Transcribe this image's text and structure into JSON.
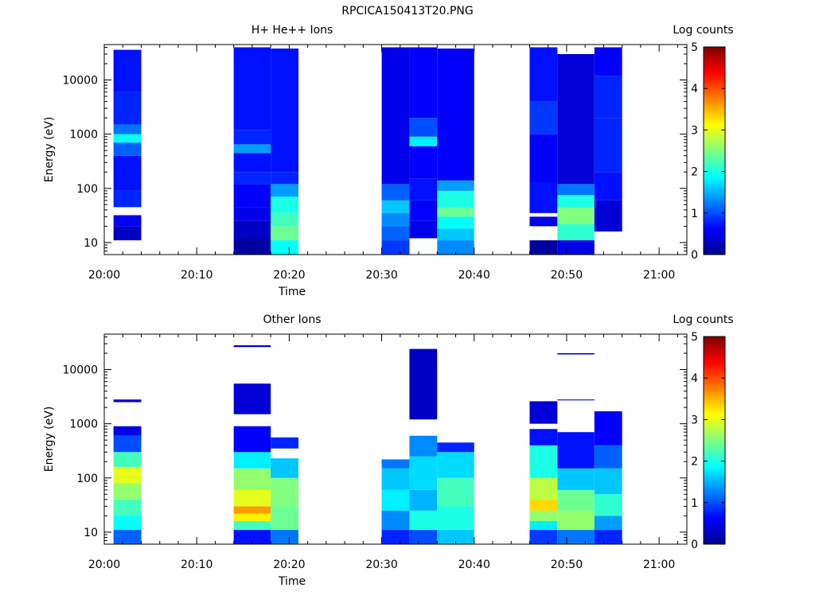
{
  "page_title": "RPCICA150413T20.PNG",
  "colors": {
    "colormap": [
      "#00008f",
      "#0000ff",
      "#0080ff",
      "#00ffff",
      "#80ff80",
      "#ffff00",
      "#ff8000",
      "#ff0000",
      "#800000"
    ]
  },
  "chart_data": [
    {
      "type": "heatmap",
      "title": "H+ He++ Ions",
      "xlabel": "Time",
      "ylabel": "Energy (eV)",
      "colorbar_label": "Log counts",
      "colorbar_range": [
        0,
        5
      ],
      "colorbar_ticks": [
        "0",
        "1",
        "2",
        "3",
        "4",
        "5"
      ],
      "y_scale": "log",
      "ylim": [
        6,
        45000
      ],
      "y_ticks": [
        {
          "value": 10,
          "label": "10"
        },
        {
          "value": 100,
          "label": "100"
        },
        {
          "value": 1000,
          "label": "1000"
        },
        {
          "value": 10000,
          "label": "10000"
        }
      ],
      "xlim": [
        "20:00",
        "21:03"
      ],
      "x_ticks": [
        "20:00",
        "20:10",
        "20:20",
        "20:30",
        "20:40",
        "20:50",
        "21:00"
      ],
      "columns": [
        {
          "t_start": "20:01",
          "t_end": "20:04",
          "bands": [
            {
              "emin": 11,
              "emax": 20,
              "log_counts": 0.3
            },
            {
              "emin": 20,
              "emax": 32,
              "log_counts": 0.6
            },
            {
              "emin": 45,
              "emax": 90,
              "log_counts": 0.8
            },
            {
              "emin": 90,
              "emax": 400,
              "log_counts": 0.7
            },
            {
              "emin": 400,
              "emax": 700,
              "log_counts": 1.1
            },
            {
              "emin": 700,
              "emax": 1000,
              "log_counts": 1.9
            },
            {
              "emin": 1000,
              "emax": 1500,
              "log_counts": 1.2
            },
            {
              "emin": 1500,
              "emax": 6000,
              "log_counts": 0.8
            },
            {
              "emin": 6000,
              "emax": 36000,
              "log_counts": 0.7
            }
          ]
        },
        {
          "t_start": "20:14",
          "t_end": "20:18",
          "bands": [
            {
              "emin": 6,
              "emax": 12,
              "log_counts": 0.1
            },
            {
              "emin": 12,
              "emax": 25,
              "log_counts": 0.3
            },
            {
              "emin": 25,
              "emax": 45,
              "log_counts": 0.5
            },
            {
              "emin": 45,
              "emax": 120,
              "log_counts": 0.6
            },
            {
              "emin": 120,
              "emax": 200,
              "log_counts": 0.8
            },
            {
              "emin": 200,
              "emax": 450,
              "log_counts": 0.7
            },
            {
              "emin": 450,
              "emax": 650,
              "log_counts": 1.4
            },
            {
              "emin": 650,
              "emax": 1200,
              "log_counts": 0.8
            },
            {
              "emin": 1200,
              "emax": 40000,
              "log_counts": 0.7
            }
          ]
        },
        {
          "t_start": "20:18",
          "t_end": "20:21",
          "bands": [
            {
              "emin": 6,
              "emax": 11,
              "log_counts": 1.9
            },
            {
              "emin": 11,
              "emax": 20,
              "log_counts": 2.4
            },
            {
              "emin": 20,
              "emax": 35,
              "log_counts": 2.2
            },
            {
              "emin": 35,
              "emax": 70,
              "log_counts": 2.0
            },
            {
              "emin": 70,
              "emax": 120,
              "log_counts": 1.4
            },
            {
              "emin": 120,
              "emax": 200,
              "log_counts": 0.8
            },
            {
              "emin": 200,
              "emax": 38000,
              "log_counts": 0.7
            }
          ]
        },
        {
          "t_start": "20:30",
          "t_end": "20:33",
          "bands": [
            {
              "emin": 6,
              "emax": 11,
              "log_counts": 0.9
            },
            {
              "emin": 11,
              "emax": 20,
              "log_counts": 1.1
            },
            {
              "emin": 20,
              "emax": 35,
              "log_counts": 1.3
            },
            {
              "emin": 35,
              "emax": 60,
              "log_counts": 1.6
            },
            {
              "emin": 60,
              "emax": 120,
              "log_counts": 1.1
            },
            {
              "emin": 120,
              "emax": 40000,
              "log_counts": 0.5
            }
          ]
        },
        {
          "t_start": "20:33",
          "t_end": "20:36",
          "bands": [
            {
              "emin": 12,
              "emax": 25,
              "log_counts": 0.5
            },
            {
              "emin": 25,
              "emax": 60,
              "log_counts": 0.6
            },
            {
              "emin": 60,
              "emax": 150,
              "log_counts": 0.7
            },
            {
              "emin": 150,
              "emax": 600,
              "log_counts": 0.6
            },
            {
              "emin": 600,
              "emax": 900,
              "log_counts": 1.8
            },
            {
              "emin": 900,
              "emax": 2000,
              "log_counts": 1.0
            },
            {
              "emin": 2000,
              "emax": 40000,
              "log_counts": 0.6
            }
          ]
        },
        {
          "t_start": "20:36",
          "t_end": "20:40",
          "bands": [
            {
              "emin": 6,
              "emax": 11,
              "log_counts": 1.3
            },
            {
              "emin": 11,
              "emax": 18,
              "log_counts": 1.6
            },
            {
              "emin": 18,
              "emax": 30,
              "log_counts": 1.9
            },
            {
              "emin": 30,
              "emax": 45,
              "log_counts": 2.4
            },
            {
              "emin": 45,
              "emax": 90,
              "log_counts": 2.0
            },
            {
              "emin": 90,
              "emax": 140,
              "log_counts": 1.4
            },
            {
              "emin": 140,
              "emax": 38000,
              "log_counts": 0.6
            }
          ]
        },
        {
          "t_start": "20:46",
          "t_end": "20:49",
          "bands": [
            {
              "emin": 6,
              "emax": 11,
              "log_counts": 0.1
            },
            {
              "emin": 20,
              "emax": 30,
              "log_counts": 0.5
            },
            {
              "emin": 35,
              "emax": 130,
              "log_counts": 0.7
            },
            {
              "emin": 130,
              "emax": 1000,
              "log_counts": 0.6
            },
            {
              "emin": 1000,
              "emax": 4000,
              "log_counts": 0.9
            },
            {
              "emin": 4000,
              "emax": 40000,
              "log_counts": 0.7
            }
          ]
        },
        {
          "t_start": "20:49",
          "t_end": "20:53",
          "bands": [
            {
              "emin": 6,
              "emax": 11,
              "log_counts": 0.5
            },
            {
              "emin": 11,
              "emax": 22,
              "log_counts": 2.1
            },
            {
              "emin": 22,
              "emax": 45,
              "log_counts": 2.5
            },
            {
              "emin": 45,
              "emax": 75,
              "log_counts": 2.0
            },
            {
              "emin": 75,
              "emax": 120,
              "log_counts": 1.2
            },
            {
              "emin": 120,
              "emax": 30000,
              "log_counts": 0.4
            }
          ]
        },
        {
          "t_start": "20:53",
          "t_end": "20:56",
          "bands": [
            {
              "emin": 16,
              "emax": 60,
              "log_counts": 0.4
            },
            {
              "emin": 60,
              "emax": 200,
              "log_counts": 0.7
            },
            {
              "emin": 200,
              "emax": 2000,
              "log_counts": 0.8
            },
            {
              "emin": 2000,
              "emax": 12000,
              "log_counts": 0.8
            },
            {
              "emin": 12000,
              "emax": 40000,
              "log_counts": 0.6
            }
          ]
        }
      ]
    },
    {
      "type": "heatmap",
      "title": "Other Ions",
      "xlabel": "Time",
      "ylabel": "Energy (eV)",
      "colorbar_label": "Log counts",
      "colorbar_range": [
        0,
        5
      ],
      "colorbar_ticks": [
        "0",
        "1",
        "2",
        "3",
        "4",
        "5"
      ],
      "y_scale": "log",
      "ylim": [
        6,
        45000
      ],
      "y_ticks": [
        {
          "value": 10,
          "label": "10"
        },
        {
          "value": 100,
          "label": "100"
        },
        {
          "value": 1000,
          "label": "1000"
        },
        {
          "value": 10000,
          "label": "10000"
        }
      ],
      "xlim": [
        "20:00",
        "21:03"
      ],
      "x_ticks": [
        "20:00",
        "20:10",
        "20:20",
        "20:30",
        "20:40",
        "20:50",
        "21:00"
      ],
      "columns": [
        {
          "t_start": "20:01",
          "t_end": "20:04",
          "bands": [
            {
              "emin": 6,
              "emax": 11,
              "log_counts": 1.1
            },
            {
              "emin": 11,
              "emax": 20,
              "log_counts": 1.9
            },
            {
              "emin": 20,
              "emax": 40,
              "log_counts": 2.2
            },
            {
              "emin": 40,
              "emax": 80,
              "log_counts": 2.6
            },
            {
              "emin": 80,
              "emax": 160,
              "log_counts": 3.0
            },
            {
              "emin": 160,
              "emax": 300,
              "log_counts": 2.2
            },
            {
              "emin": 300,
              "emax": 600,
              "log_counts": 1.0
            },
            {
              "emin": 600,
              "emax": 900,
              "log_counts": 0.5
            },
            {
              "emin": 2500,
              "emax": 2800,
              "log_counts": 0.4
            }
          ]
        },
        {
          "t_start": "20:14",
          "t_end": "20:18",
          "bands": [
            {
              "emin": 6,
              "emax": 11,
              "log_counts": 0.7
            },
            {
              "emin": 11,
              "emax": 16,
              "log_counts": 2.2
            },
            {
              "emin": 16,
              "emax": 22,
              "log_counts": 3.2
            },
            {
              "emin": 22,
              "emax": 30,
              "log_counts": 3.6
            },
            {
              "emin": 30,
              "emax": 60,
              "log_counts": 3.0
            },
            {
              "emin": 60,
              "emax": 150,
              "log_counts": 2.6
            },
            {
              "emin": 150,
              "emax": 300,
              "log_counts": 1.8
            },
            {
              "emin": 300,
              "emax": 900,
              "log_counts": 0.6
            },
            {
              "emin": 1500,
              "emax": 5500,
              "log_counts": 0.4
            },
            {
              "emin": 26000,
              "emax": 28000,
              "log_counts": 0.3
            }
          ]
        },
        {
          "t_start": "20:18",
          "t_end": "20:21",
          "bands": [
            {
              "emin": 6,
              "emax": 11,
              "log_counts": 1.2
            },
            {
              "emin": 11,
              "emax": 30,
              "log_counts": 2.4
            },
            {
              "emin": 30,
              "emax": 100,
              "log_counts": 2.5
            },
            {
              "emin": 100,
              "emax": 230,
              "log_counts": 1.6
            },
            {
              "emin": 350,
              "emax": 560,
              "log_counts": 0.8
            }
          ]
        },
        {
          "t_start": "20:30",
          "t_end": "20:33",
          "bands": [
            {
              "emin": 6,
              "emax": 11,
              "log_counts": 0.8
            },
            {
              "emin": 11,
              "emax": 25,
              "log_counts": 1.3
            },
            {
              "emin": 25,
              "emax": 60,
              "log_counts": 1.8
            },
            {
              "emin": 60,
              "emax": 150,
              "log_counts": 1.6
            },
            {
              "emin": 150,
              "emax": 220,
              "log_counts": 1.2
            }
          ]
        },
        {
          "t_start": "20:33",
          "t_end": "20:36",
          "bands": [
            {
              "emin": 6,
              "emax": 11,
              "log_counts": 1.0
            },
            {
              "emin": 11,
              "emax": 25,
              "log_counts": 2.0
            },
            {
              "emin": 25,
              "emax": 60,
              "log_counts": 1.5
            },
            {
              "emin": 60,
              "emax": 250,
              "log_counts": 1.7
            },
            {
              "emin": 250,
              "emax": 600,
              "log_counts": 1.3
            },
            {
              "emin": 1200,
              "emax": 24000,
              "log_counts": 0.3
            }
          ]
        },
        {
          "t_start": "20:36",
          "t_end": "20:40",
          "bands": [
            {
              "emin": 6,
              "emax": 11,
              "log_counts": 1.6
            },
            {
              "emin": 11,
              "emax": 30,
              "log_counts": 2.0
            },
            {
              "emin": 30,
              "emax": 100,
              "log_counts": 2.2
            },
            {
              "emin": 100,
              "emax": 300,
              "log_counts": 1.7
            },
            {
              "emin": 300,
              "emax": 450,
              "log_counts": 0.8
            }
          ]
        },
        {
          "t_start": "20:46",
          "t_end": "20:49",
          "bands": [
            {
              "emin": 6,
              "emax": 11,
              "log_counts": 0.9
            },
            {
              "emin": 11,
              "emax": 16,
              "log_counts": 1.8
            },
            {
              "emin": 16,
              "emax": 25,
              "log_counts": 2.6
            },
            {
              "emin": 25,
              "emax": 40,
              "log_counts": 3.3
            },
            {
              "emin": 40,
              "emax": 100,
              "log_counts": 2.8
            },
            {
              "emin": 100,
              "emax": 400,
              "log_counts": 2.0
            },
            {
              "emin": 400,
              "emax": 800,
              "log_counts": 0.7
            },
            {
              "emin": 1000,
              "emax": 2600,
              "log_counts": 0.4
            }
          ]
        },
        {
          "t_start": "20:49",
          "t_end": "20:53",
          "bands": [
            {
              "emin": 6,
              "emax": 11,
              "log_counts": 1.2
            },
            {
              "emin": 11,
              "emax": 25,
              "log_counts": 2.6
            },
            {
              "emin": 25,
              "emax": 60,
              "log_counts": 2.4
            },
            {
              "emin": 60,
              "emax": 150,
              "log_counts": 1.6
            },
            {
              "emin": 150,
              "emax": 700,
              "log_counts": 0.7
            },
            {
              "emin": 2700,
              "emax": 2800,
              "log_counts": 0.3
            },
            {
              "emin": 19000,
              "emax": 20000,
              "log_counts": 0.3
            }
          ]
        },
        {
          "t_start": "20:53",
          "t_end": "20:56",
          "bands": [
            {
              "emin": 6,
              "emax": 11,
              "log_counts": 0.8
            },
            {
              "emin": 11,
              "emax": 20,
              "log_counts": 1.4
            },
            {
              "emin": 20,
              "emax": 50,
              "log_counts": 2.1
            },
            {
              "emin": 50,
              "emax": 150,
              "log_counts": 1.6
            },
            {
              "emin": 150,
              "emax": 400,
              "log_counts": 1.1
            },
            {
              "emin": 400,
              "emax": 1700,
              "log_counts": 0.6
            }
          ]
        }
      ]
    }
  ]
}
